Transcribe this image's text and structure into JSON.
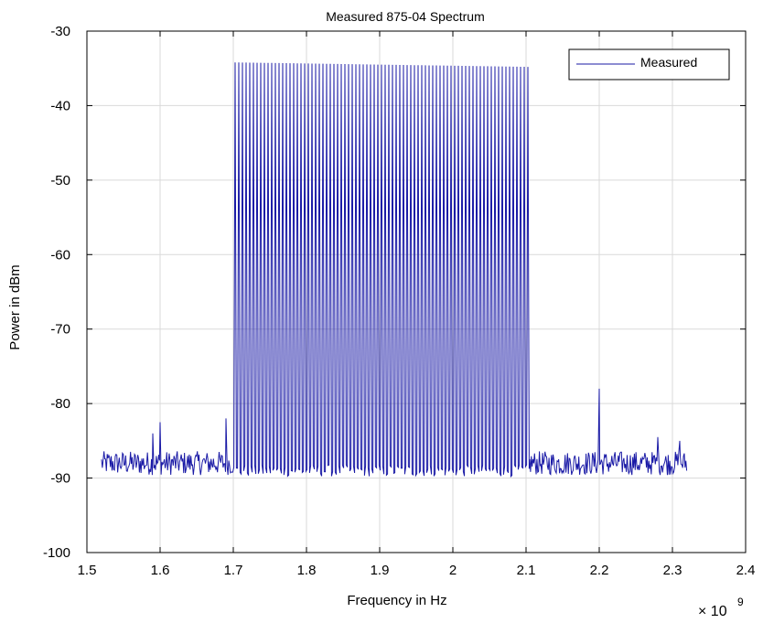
{
  "chart_data": {
    "type": "line",
    "title": "Measured 875-04 Spectrum",
    "xlabel": "Frequency in Hz",
    "ylabel": "Power in dBm",
    "x_multiplier_base": "× 10",
    "x_multiplier_exp": "9",
    "xlim": [
      1.5,
      2.4
    ],
    "ylim": [
      -100,
      -30
    ],
    "xticks": [
      1.5,
      1.6,
      1.7,
      1.8,
      1.9,
      2.0,
      2.1,
      2.2,
      2.3,
      2.4
    ],
    "xtick_labels": [
      "1.5",
      "1.6",
      "1.7",
      "1.8",
      "1.9",
      "2",
      "2.1",
      "2.2",
      "2.3",
      "2.4"
    ],
    "yticks": [
      -30,
      -40,
      -50,
      -60,
      -70,
      -80,
      -90,
      -100
    ],
    "ytick_labels": [
      "-30",
      "-40",
      "-50",
      "-60",
      "-70",
      "-80",
      "-90",
      "-100"
    ],
    "grid": true,
    "legend_position": "top-right",
    "colors": {
      "series": "#1a1aa6",
      "grid": "#d9d9d9",
      "axis": "#000000"
    },
    "series": [
      {
        "name": "Measured",
        "x_range": [
          1.52,
          2.32
        ],
        "noise_floor_dbm": -88,
        "noise_peaks": [
          {
            "x": 1.6,
            "y": -82.5
          },
          {
            "x": 1.59,
            "y": -84
          },
          {
            "x": 1.69,
            "y": -82
          },
          {
            "x": 2.2,
            "y": -78
          },
          {
            "x": 2.28,
            "y": -84.5
          },
          {
            "x": 2.31,
            "y": -85
          }
        ],
        "comb_start": 1.7,
        "comb_end": 2.102,
        "comb_spacing": 0.005,
        "comb_peak_dbm_start": -34.2,
        "comb_peak_dbm_end": -34.8,
        "comb_trough_dbm": -89
      }
    ]
  }
}
